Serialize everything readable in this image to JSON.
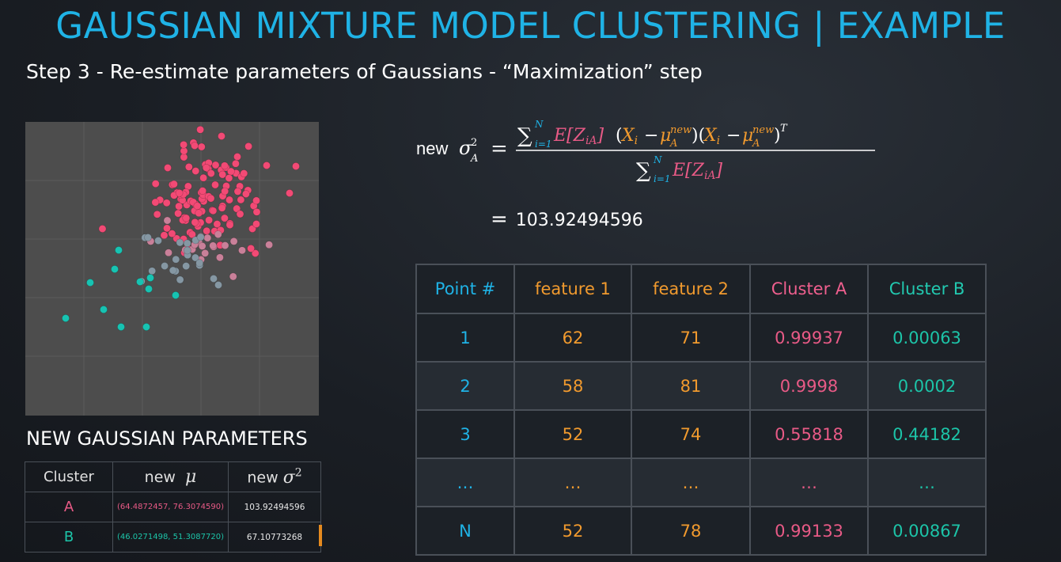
{
  "title": "GAUSSIAN MIXTURE MODEL CLUSTERING | EXAMPLE",
  "subtitle": "Step 3 - Re-estimate parameters of Gaussians - “Maximization” step",
  "formula": {
    "lhs_prefix": "new",
    "result": "103.92494596"
  },
  "params_heading": "NEW GAUSSIAN PARAMETERS",
  "params_table": {
    "headers": [
      "Cluster",
      "new",
      "new"
    ],
    "rows": [
      {
        "cluster": "A",
        "mu": "(64.4872457, 76.3074590)",
        "sigma2": "103.92494596"
      },
      {
        "cluster": "B",
        "mu": "(46.0271498, 51.3087720)",
        "sigma2": "67.10773268"
      }
    ]
  },
  "data_table": {
    "headers": [
      "Point #",
      "feature 1",
      "feature 2",
      "Cluster A",
      "Cluster B"
    ],
    "rows": [
      [
        "1",
        "62",
        "71",
        "0.99937",
        "0.00063"
      ],
      [
        "2",
        "58",
        "81",
        "0.9998",
        "0.0002"
      ],
      [
        "3",
        "52",
        "74",
        "0.55818",
        "0.44182"
      ],
      [
        "…",
        "…",
        "…",
        "…",
        "…"
      ],
      [
        "N",
        "52",
        "78",
        "0.99133",
        "0.00867"
      ]
    ]
  },
  "colors": {
    "title": "#1fb3e6",
    "cluster_a": "#e85a86",
    "cluster_b": "#1cc4a8",
    "feature": "#f19a2e",
    "plot_bg": "#4d4d4d"
  }
}
